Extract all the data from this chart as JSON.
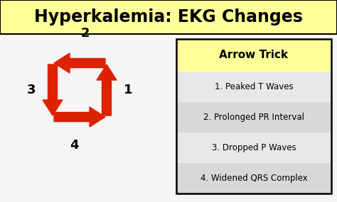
{
  "title": "Hyperkalemia: EKG Changes",
  "title_bg": "#ffff99",
  "title_fontsize": 17,
  "bg_color": "#f5f5f5",
  "arrow_color": "#dd2200",
  "arrow_trick_title": "Arrow Trick",
  "arrow_trick_bg": "#ffff99",
  "items": [
    "1. Peaked T Waves",
    "2. Prolonged PR Interval",
    "3. Dropped P Waves",
    "4. Widened QRS Complex"
  ],
  "row_colors": [
    "#e8e8e8",
    "#d8d8d8",
    "#e8e8e8",
    "#d8d8d8"
  ],
  "panel_border": "#888888",
  "num_fontsize": 13
}
